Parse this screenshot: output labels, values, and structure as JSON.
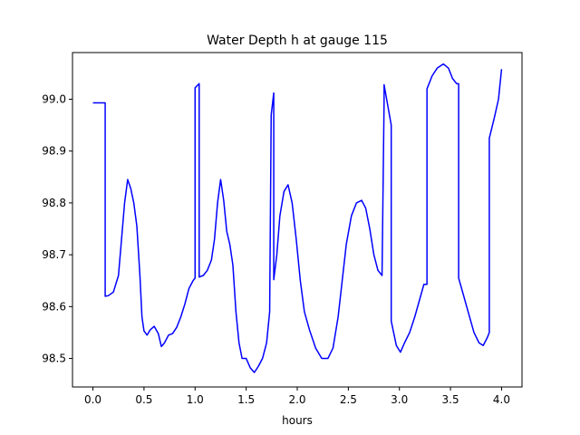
{
  "chart_data": {
    "type": "line",
    "title": "Water Depth h at gauge 115",
    "xlabel": "hours",
    "ylabel": "",
    "xlim": [
      -0.2,
      4.2
    ],
    "ylim": [
      98.445,
      99.09
    ],
    "xticks": [
      0.0,
      0.5,
      1.0,
      1.5,
      2.0,
      2.5,
      3.0,
      3.5,
      4.0
    ],
    "xtick_labels": [
      "0.0",
      "0.5",
      "1.0",
      "1.5",
      "2.0",
      "2.5",
      "3.0",
      "3.5",
      "4.0"
    ],
    "yticks": [
      98.5,
      98.6,
      98.7,
      98.8,
      98.9,
      99.0
    ],
    "ytick_labels": [
      "98.5",
      "98.6",
      "98.7",
      "98.8",
      "98.9",
      "99.0"
    ],
    "grid": false,
    "series": [
      {
        "color": "#0000ff",
        "x": [
          0.0,
          0.12,
          0.12,
          0.15,
          0.2,
          0.25,
          0.28,
          0.31,
          0.34,
          0.37,
          0.4,
          0.43,
          0.46,
          0.48,
          0.5,
          0.53,
          0.56,
          0.6,
          0.64,
          0.67,
          0.7,
          0.74,
          0.78,
          0.82,
          0.86,
          0.9,
          0.94,
          0.98,
          1.0,
          1.0,
          1.04,
          1.04,
          1.08,
          1.12,
          1.16,
          1.19,
          1.22,
          1.25,
          1.28,
          1.31,
          1.34,
          1.37,
          1.4,
          1.43,
          1.46,
          1.5,
          1.54,
          1.58,
          1.62,
          1.66,
          1.7,
          1.73,
          1.745,
          1.745,
          1.77,
          1.77,
          1.8,
          1.83,
          1.87,
          1.91,
          1.95,
          1.99,
          2.03,
          2.07,
          2.12,
          2.18,
          2.24,
          2.3,
          2.35,
          2.4,
          2.44,
          2.48,
          2.53,
          2.58,
          2.63,
          2.67,
          2.71,
          2.75,
          2.79,
          2.83,
          2.85,
          2.85,
          2.92,
          2.92,
          2.97,
          3.01,
          3.05,
          3.1,
          3.15,
          3.2,
          3.24,
          3.27,
          3.27,
          3.32,
          3.37,
          3.43,
          3.48,
          3.52,
          3.56,
          3.58,
          3.58,
          3.63,
          3.68,
          3.73,
          3.78,
          3.82,
          3.86,
          3.88,
          3.88,
          3.93,
          3.97,
          4.0
        ],
        "y": [
          98.993,
          98.993,
          98.62,
          98.621,
          98.628,
          98.66,
          98.73,
          98.8,
          98.845,
          98.828,
          98.8,
          98.755,
          98.66,
          98.58,
          98.553,
          98.545,
          98.555,
          98.562,
          98.548,
          98.523,
          98.53,
          98.545,
          98.548,
          98.56,
          98.58,
          98.605,
          98.635,
          98.65,
          98.655,
          99.022,
          99.03,
          98.657,
          98.66,
          98.67,
          98.69,
          98.73,
          98.8,
          98.845,
          98.805,
          98.745,
          98.72,
          98.68,
          98.59,
          98.53,
          98.5,
          98.5,
          98.482,
          98.473,
          98.485,
          98.5,
          98.53,
          98.59,
          98.97,
          98.97,
          99.012,
          98.652,
          98.7,
          98.775,
          98.822,
          98.835,
          98.8,
          98.73,
          98.65,
          98.59,
          98.555,
          98.52,
          98.5,
          98.5,
          98.52,
          98.58,
          98.65,
          98.72,
          98.775,
          98.8,
          98.805,
          98.79,
          98.75,
          98.7,
          98.67,
          98.66,
          98.995,
          99.028,
          98.95,
          98.572,
          98.525,
          98.512,
          98.53,
          98.55,
          98.58,
          98.615,
          98.643,
          98.643,
          99.02,
          99.045,
          99.06,
          99.068,
          99.06,
          99.04,
          99.03,
          99.03,
          98.655,
          98.62,
          98.585,
          98.55,
          98.53,
          98.525,
          98.54,
          98.55,
          98.925,
          98.965,
          99.0,
          99.058
        ]
      }
    ]
  }
}
